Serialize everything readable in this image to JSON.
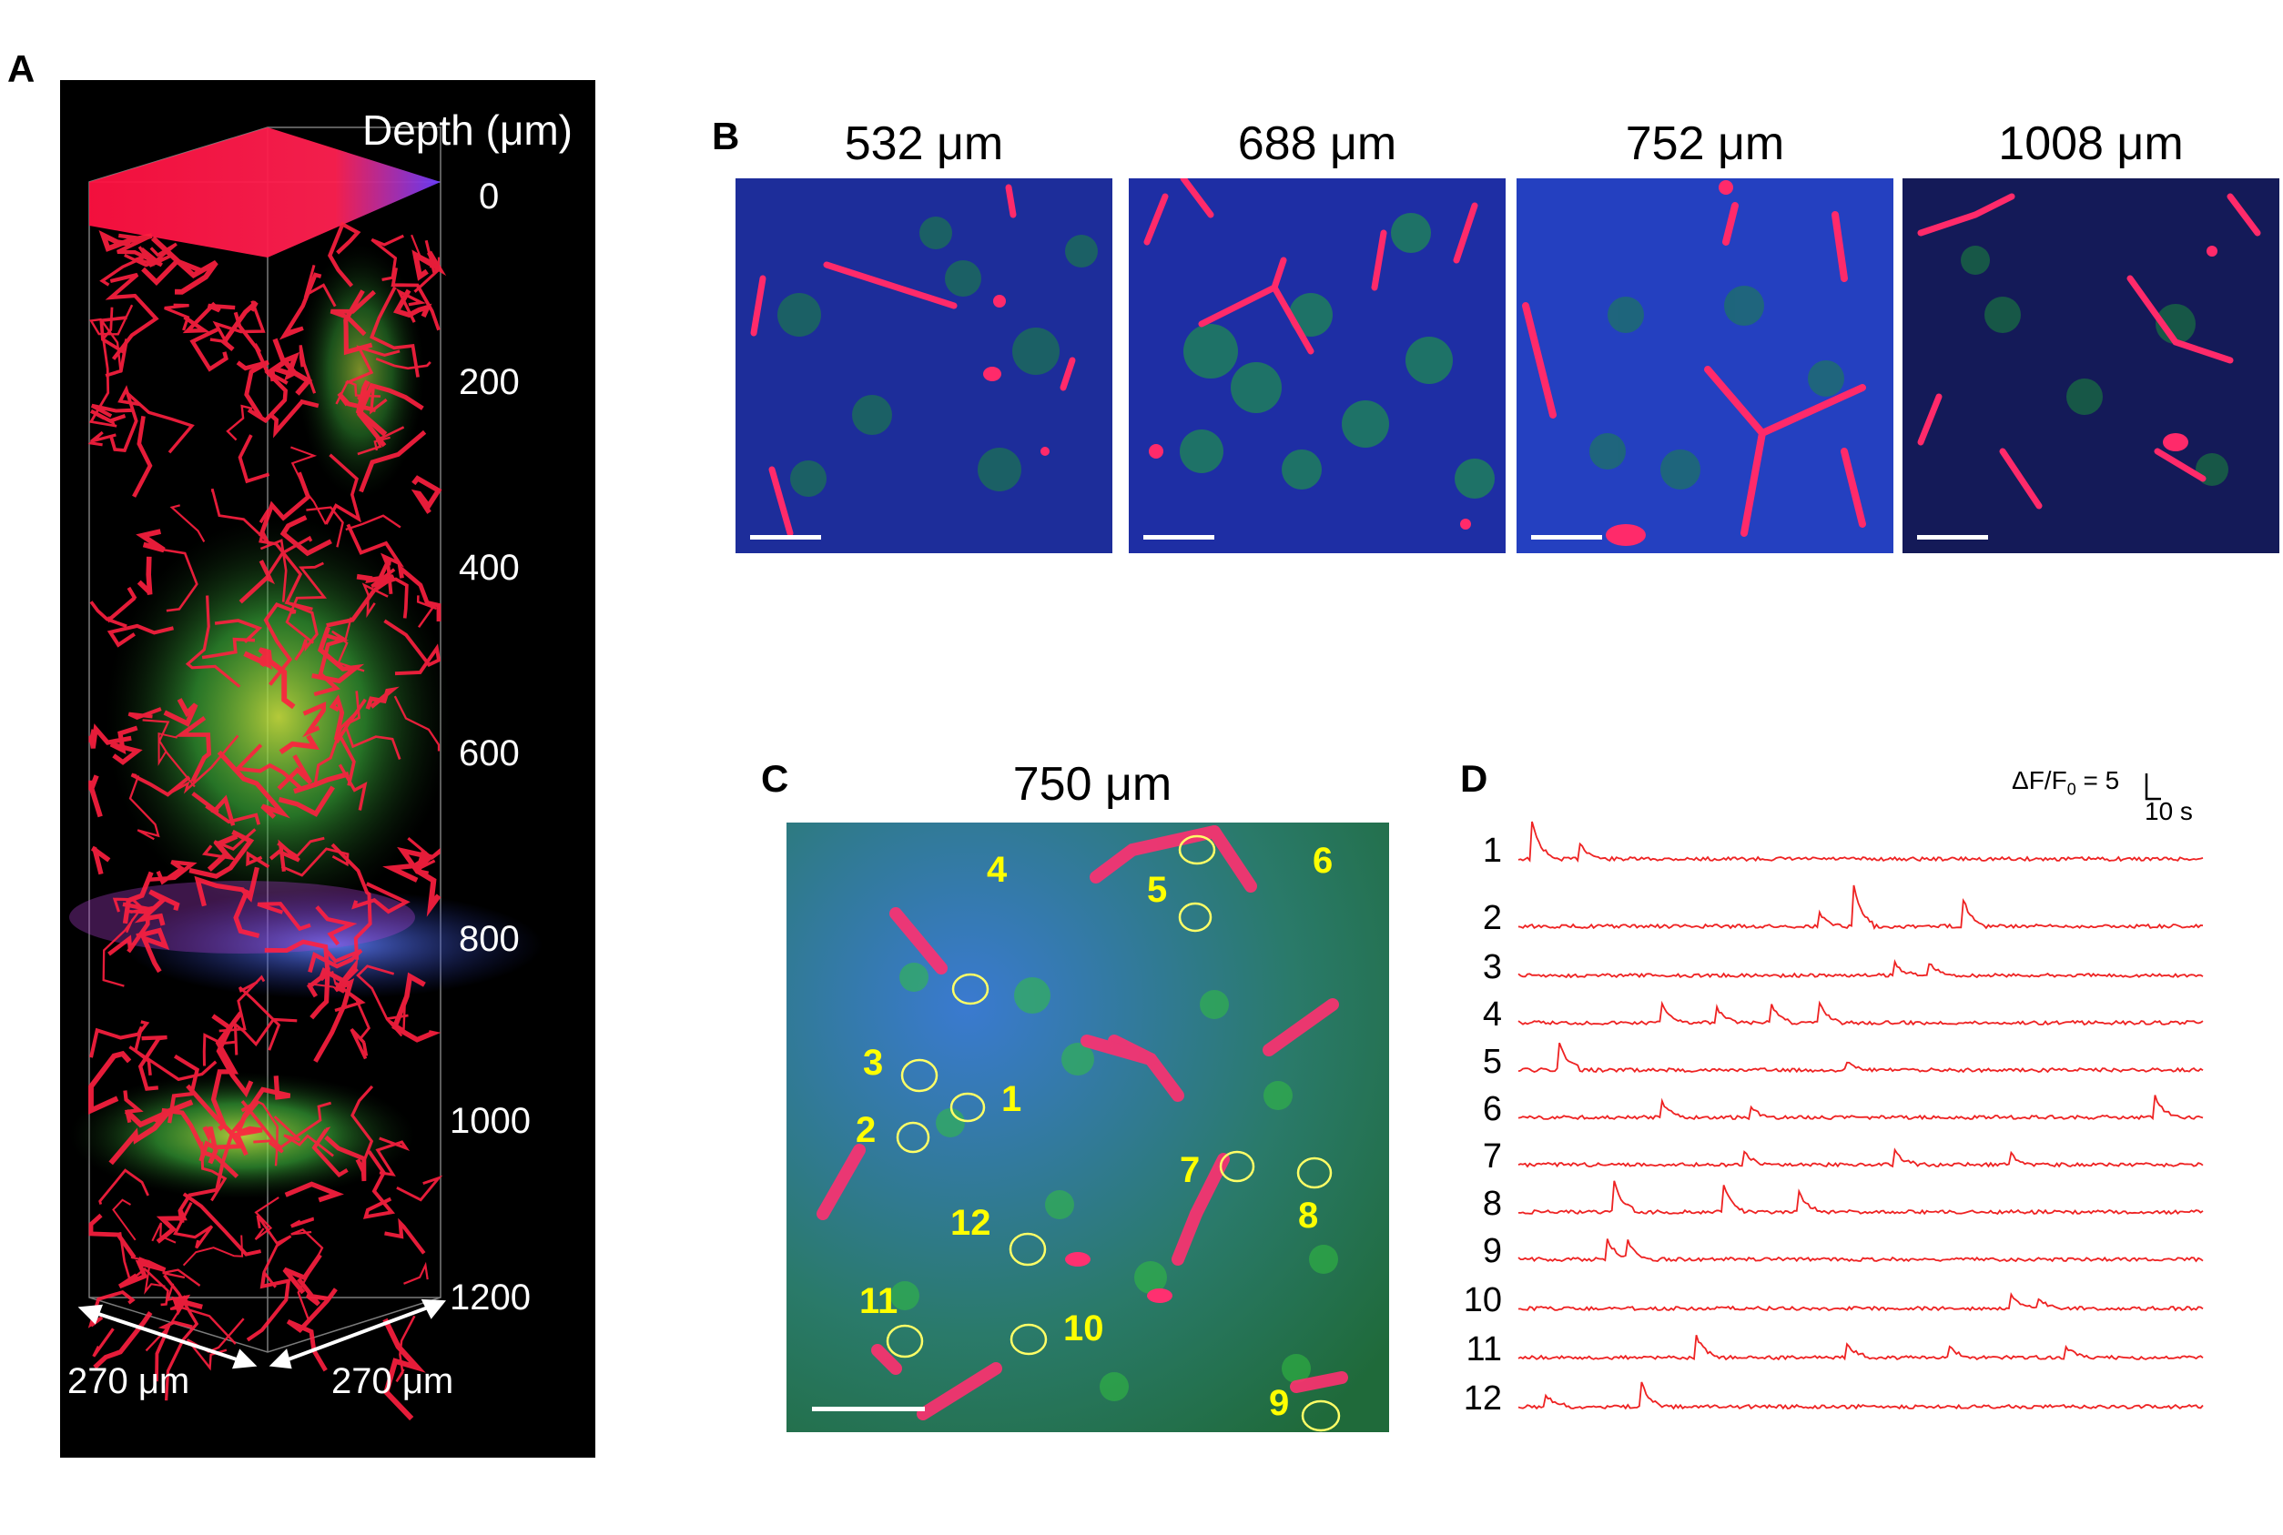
{
  "panels": {
    "a_letter": "A",
    "b_letter": "B",
    "c_letter": "C",
    "d_letter": "D"
  },
  "panel_a": {
    "depth_title": "Depth (μm)",
    "depth_ticks": [
      "0",
      "200",
      "400",
      "600",
      "800",
      "1000",
      "1200"
    ],
    "dim_left": "270 μm",
    "dim_right": "270 μm"
  },
  "panel_b": {
    "titles": [
      "532 μm",
      "688 μm",
      "752 μm",
      "1008 μm"
    ]
  },
  "panel_c": {
    "title": "750 μm",
    "rois": [
      "1",
      "2",
      "3",
      "4",
      "5",
      "6",
      "7",
      "8",
      "9",
      "10",
      "11",
      "12"
    ]
  },
  "panel_d": {
    "scale_y": "ΔF/F",
    "scale_y_sub": "0",
    "scale_y_value": " = 5",
    "scale_x": "10 s",
    "trace_labels": [
      "1",
      "2",
      "3",
      "4",
      "5",
      "6",
      "7",
      "8",
      "9",
      "10",
      "11",
      "12"
    ]
  },
  "colors": {
    "vessel": "#ff2255",
    "neuron": "#33dd55",
    "background_blue": "#2244cc",
    "roi": "#ffff66",
    "trace": "#ee2222"
  }
}
